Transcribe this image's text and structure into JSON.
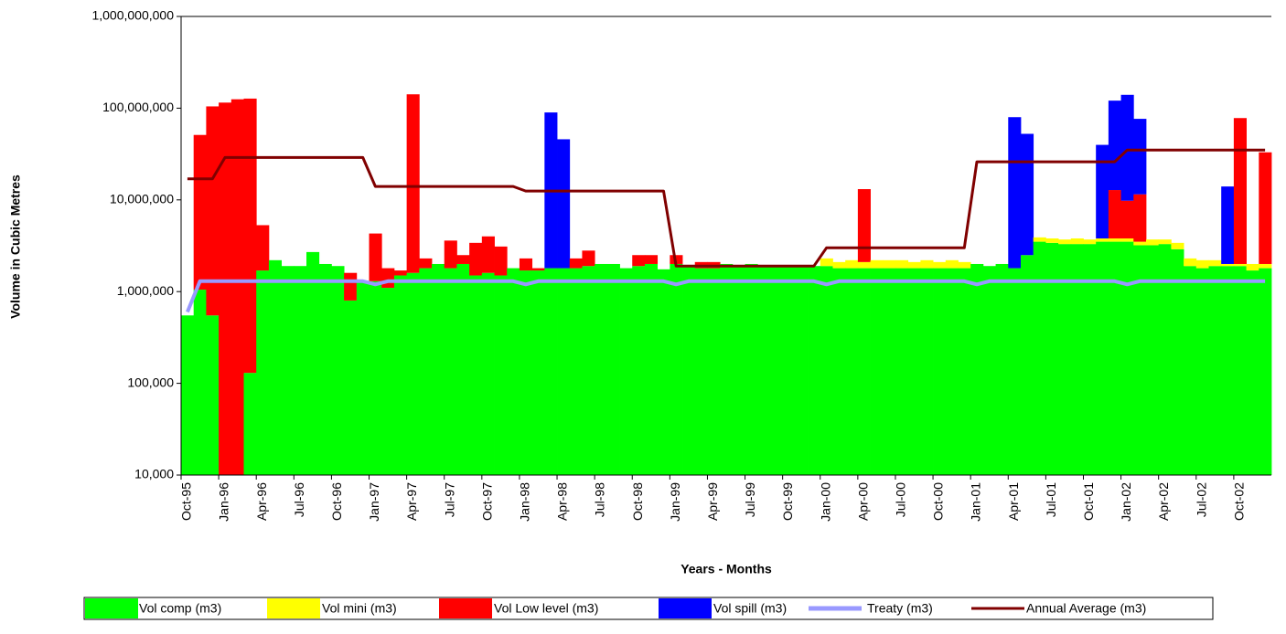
{
  "chart_data": {
    "type": "bar",
    "stacked": true,
    "log_scale": true,
    "grid": false,
    "x_label": "Years - Months",
    "y_label": "Volume in Cubic Metres",
    "categories": [
      "Oct-95",
      null,
      null,
      "Jan-96",
      null,
      null,
      "Apr-96",
      null,
      null,
      "Jul-96",
      null,
      null,
      "Oct-96",
      null,
      null,
      "Jan-97",
      null,
      null,
      "Apr-97",
      null,
      null,
      "Jul-97",
      null,
      null,
      "Oct-97",
      null,
      null,
      "Jan-98",
      null,
      null,
      "Apr-98",
      null,
      null,
      "Jul-98",
      null,
      null,
      "Oct-98",
      null,
      null,
      "Jan-99",
      null,
      null,
      "Apr-99",
      null,
      null,
      "Jul-99",
      null,
      null,
      "Oct-99",
      null,
      null,
      "Jan-00",
      null,
      null,
      "Apr-00",
      null,
      null,
      "Jul-00",
      null,
      null,
      "Oct-00",
      null,
      null,
      "Jan-01",
      null,
      null,
      "Apr-01",
      null,
      null,
      "Jul-01",
      null,
      null,
      "Oct-01",
      null,
      null,
      "Jan-02",
      null,
      null,
      "Apr-02",
      null,
      null,
      "Jul-02",
      null,
      null,
      "Oct-02",
      null,
      null
    ],
    "ylim": [
      10000,
      1000000000
    ],
    "yticks": [
      {
        "value": 10000,
        "label": "10,000"
      },
      {
        "value": 100000,
        "label": "100,000"
      },
      {
        "value": 1000000,
        "label": "1,000,000"
      },
      {
        "value": 10000000,
        "label": "10,000,000"
      },
      {
        "value": 100000000,
        "label": "100,000,000"
      },
      {
        "value": 1000000000,
        "label": "1,000,000,000"
      }
    ],
    "series": [
      {
        "name": "Vol comp (m3)",
        "type": "bar",
        "color": "#00ff00",
        "values": [
          550000,
          1050000,
          550000,
          null,
          null,
          130000,
          1700000,
          2200000,
          1900000,
          1900000,
          2700000,
          2000000,
          1900000,
          800000,
          1300000,
          1300000,
          1100000,
          1500000,
          1600000,
          1800000,
          2000000,
          1800000,
          2000000,
          1500000,
          1600000,
          1500000,
          1800000,
          1700000,
          1700000,
          1800000,
          1800000,
          1800000,
          1900000,
          2000000,
          2000000,
          1800000,
          1900000,
          2000000,
          1750000,
          2000000,
          1900000,
          1800000,
          1800000,
          2000000,
          1900000,
          2000000,
          1900000,
          1900000,
          1900000,
          1900000,
          1900000,
          1900000,
          1800000,
          1800000,
          1800000,
          1800000,
          1800000,
          1800000,
          1800000,
          1800000,
          1800000,
          1800000,
          1800000,
          2000000,
          1900000,
          2000000,
          1800000,
          2500000,
          3500000,
          3400000,
          3300000,
          3300000,
          3300000,
          3500000,
          3500000,
          3500000,
          3200000,
          3200000,
          3300000,
          2900000,
          1900000,
          1800000,
          1900000,
          1900000,
          1900000,
          1700000,
          1800000
        ]
      },
      {
        "name": "Vol mini (m3)",
        "type": "bar",
        "color": "#ffff00",
        "values": [
          null,
          null,
          null,
          null,
          null,
          null,
          null,
          null,
          null,
          null,
          null,
          null,
          null,
          null,
          null,
          null,
          null,
          null,
          null,
          null,
          null,
          null,
          null,
          null,
          null,
          null,
          null,
          null,
          null,
          null,
          null,
          null,
          null,
          null,
          null,
          null,
          null,
          null,
          null,
          null,
          null,
          null,
          null,
          null,
          null,
          null,
          null,
          null,
          null,
          null,
          null,
          400000,
          300000,
          400000,
          300000,
          400000,
          400000,
          400000,
          300000,
          400000,
          300000,
          400000,
          300000,
          null,
          null,
          null,
          null,
          null,
          400000,
          400000,
          400000,
          500000,
          400000,
          300000,
          300000,
          300000,
          300000,
          500000,
          400000,
          500000,
          400000,
          400000,
          300000,
          100000,
          100000,
          300000,
          200000
        ]
      },
      {
        "name": "Vol Low level (m3)",
        "type": "bar",
        "color": "#ff0000",
        "values": [
          null,
          50000000,
          104000000,
          115000000,
          125000000,
          127000000,
          3600000,
          null,
          null,
          null,
          null,
          null,
          null,
          800000,
          null,
          3000000,
          700000,
          200000,
          140000000,
          500000,
          null,
          1800000,
          500000,
          1900000,
          2400000,
          1600000,
          null,
          600000,
          100000,
          null,
          null,
          500000,
          900000,
          null,
          null,
          null,
          600000,
          500000,
          null,
          500000,
          null,
          300000,
          300000,
          null,
          null,
          null,
          null,
          null,
          null,
          null,
          null,
          null,
          null,
          null,
          11000000,
          null,
          null,
          null,
          null,
          null,
          null,
          null,
          null,
          null,
          null,
          null,
          null,
          null,
          null,
          null,
          null,
          null,
          null,
          null,
          9000000,
          6000000,
          8000000,
          null,
          null,
          null,
          null,
          null,
          null,
          null,
          76000000,
          null,
          31000000
        ]
      },
      {
        "name": "Vol spill (m3)",
        "type": "bar",
        "color": "#0000ff",
        "values": [
          null,
          null,
          null,
          null,
          null,
          null,
          null,
          null,
          null,
          null,
          null,
          null,
          null,
          null,
          null,
          null,
          null,
          null,
          null,
          null,
          null,
          null,
          null,
          null,
          null,
          null,
          null,
          null,
          null,
          88000000,
          44000000,
          null,
          null,
          null,
          null,
          null,
          null,
          null,
          null,
          null,
          null,
          null,
          null,
          null,
          null,
          null,
          null,
          null,
          null,
          null,
          null,
          null,
          null,
          null,
          null,
          null,
          null,
          null,
          null,
          null,
          null,
          null,
          null,
          null,
          null,
          null,
          78000000,
          50000000,
          null,
          null,
          null,
          null,
          null,
          36000000,
          108000000,
          130000000,
          65000000,
          null,
          null,
          null,
          null,
          null,
          null,
          12000000,
          null,
          null,
          null
        ]
      },
      {
        "name": "Treaty (m3)",
        "type": "line",
        "color": "#9999ff",
        "values": [
          600000,
          1300000,
          1300000,
          1300000,
          1300000,
          1300000,
          1300000,
          1300000,
          1300000,
          1300000,
          1300000,
          1300000,
          1300000,
          1300000,
          1300000,
          1200000,
          1300000,
          1300000,
          1300000,
          1300000,
          1300000,
          1300000,
          1300000,
          1300000,
          1300000,
          1300000,
          1300000,
          1200000,
          1300000,
          1300000,
          1300000,
          1300000,
          1300000,
          1300000,
          1300000,
          1300000,
          1300000,
          1300000,
          1300000,
          1200000,
          1300000,
          1300000,
          1300000,
          1300000,
          1300000,
          1300000,
          1300000,
          1300000,
          1300000,
          1300000,
          1300000,
          1200000,
          1300000,
          1300000,
          1300000,
          1300000,
          1300000,
          1300000,
          1300000,
          1300000,
          1300000,
          1300000,
          1300000,
          1200000,
          1300000,
          1300000,
          1300000,
          1300000,
          1300000,
          1300000,
          1300000,
          1300000,
          1300000,
          1300000,
          1300000,
          1200000,
          1300000,
          1300000,
          1300000,
          1300000,
          1300000,
          1300000,
          1300000,
          1300000,
          1300000,
          1300000,
          1300000
        ]
      },
      {
        "name": "Annual Average (m3)",
        "type": "line",
        "color": "#800000",
        "values": [
          17000000,
          17000000,
          17000000,
          29000000,
          29000000,
          29000000,
          29000000,
          29000000,
          29000000,
          29000000,
          29000000,
          29000000,
          29000000,
          29000000,
          29000000,
          14000000,
          14000000,
          14000000,
          14000000,
          14000000,
          14000000,
          14000000,
          14000000,
          14000000,
          14000000,
          14000000,
          14000000,
          12500000,
          12500000,
          12500000,
          12500000,
          12500000,
          12500000,
          12500000,
          12500000,
          12500000,
          12500000,
          12500000,
          12500000,
          1900000,
          1900000,
          1900000,
          1900000,
          1900000,
          1900000,
          1900000,
          1900000,
          1900000,
          1900000,
          1900000,
          1900000,
          3000000,
          3000000,
          3000000,
          3000000,
          3000000,
          3000000,
          3000000,
          3000000,
          3000000,
          3000000,
          3000000,
          3000000,
          26000000,
          26000000,
          26000000,
          26000000,
          26000000,
          26000000,
          26000000,
          26000000,
          26000000,
          26000000,
          26000000,
          26000000,
          35000000,
          35000000,
          35000000,
          35000000,
          35000000,
          35000000,
          35000000,
          35000000,
          35000000,
          35000000,
          35000000,
          35000000
        ]
      }
    ]
  }
}
